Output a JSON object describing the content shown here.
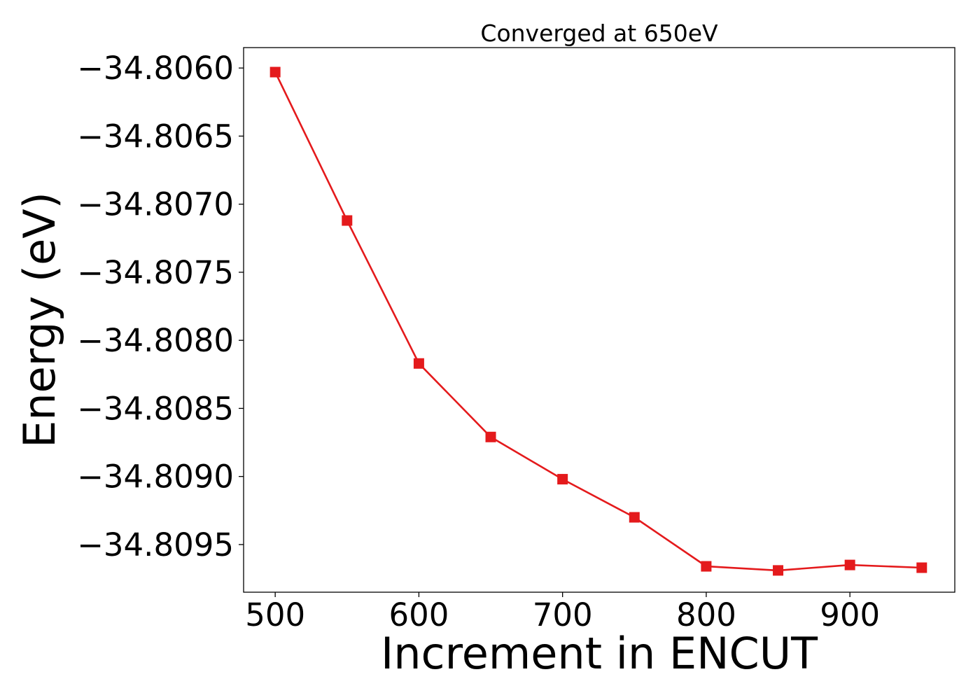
{
  "chart_data": {
    "type": "line",
    "title": "Converged at 650eV",
    "xlabel": "Increment in ENCUT",
    "ylabel": "Energy (eV)",
    "x": [
      500,
      550,
      600,
      650,
      700,
      750,
      800,
      850,
      900,
      950
    ],
    "series": [
      {
        "values": [
          -34.80603,
          -34.80712,
          -34.80817,
          -34.80871,
          -34.80902,
          -34.8093,
          -34.80966,
          -34.80969,
          -34.80965,
          -34.80967
        ],
        "color": "#e41a1c",
        "marker": "square"
      }
    ],
    "xlim": [
      478,
      973
    ],
    "ylim": [
      -34.80985,
      -34.80585
    ],
    "xticks": [
      500,
      600,
      700,
      800,
      900
    ],
    "xtick_labels": [
      "500",
      "600",
      "700",
      "800",
      "900"
    ],
    "yticks": [
      -34.806,
      -34.8065,
      -34.807,
      -34.8075,
      -34.808,
      -34.8085,
      -34.809,
      -34.8095
    ],
    "ytick_labels": [
      "−34.8060",
      "−34.8065",
      "−34.8070",
      "−34.8075",
      "−34.8080",
      "−34.8085",
      "−34.8090",
      "−34.8095"
    ],
    "grid": false,
    "legend": "none"
  }
}
